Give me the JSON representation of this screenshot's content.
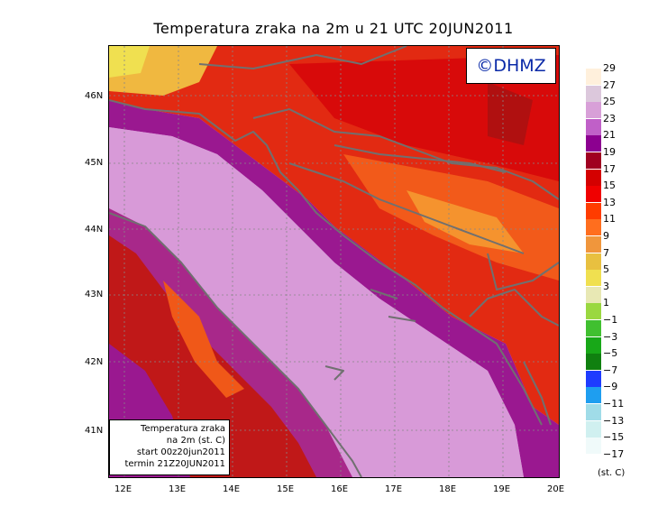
{
  "title": "Temperatura zraka na 2m u 21 UTC 20JUN2011",
  "copyright": "©DHMZ",
  "info_box": {
    "line1": "Temperatura zraka",
    "line2": "na 2m (st. C)",
    "line3": "start 00z20jun2011",
    "line4": "termin 21Z20JUN2011"
  },
  "lat_labels": [
    "46N",
    "45N",
    "44N",
    "43N",
    "42N",
    "41N"
  ],
  "lon_labels": [
    "12E",
    "13E",
    "14E",
    "15E",
    "16E",
    "17E",
    "18E",
    "19E",
    "20E"
  ],
  "legend": {
    "unit": "(st. C)",
    "labels": [
      "29",
      "27",
      "25",
      "23",
      "21",
      "19",
      "17",
      "15",
      "13",
      "11",
      "9",
      "7",
      "5",
      "3",
      "1",
      "−1",
      "−3",
      "−5",
      "−7",
      "−9",
      "−11",
      "−13",
      "−15",
      "−17"
    ],
    "colors": [
      "#fff0dc",
      "#dcc8dc",
      "#d8a0d8",
      "#c060c8",
      "#8c0090",
      "#a00020",
      "#d40000",
      "#f00000",
      "#ff3c00",
      "#ff6e1e",
      "#f0963c",
      "#e8c040",
      "#f0e050",
      "#e8e8b4",
      "#9ad840",
      "#40c030",
      "#18a818",
      "#108010",
      "#1e3cff",
      "#1e9ef0",
      "#a0dce8",
      "#d0f0f0",
      "#f0fafa"
    ]
  }
}
